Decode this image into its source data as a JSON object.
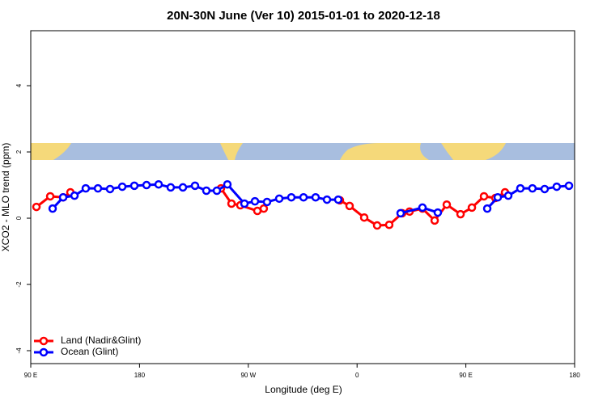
{
  "chart_data": {
    "type": "line",
    "title": "20N-30N June (Ver 10)   2015-01-01 to 2020-12-18",
    "x_label": "Longitude (deg E)",
    "y_label": "XCO2 - MLO trend (ppm)",
    "xlim": [
      90,
      540
    ],
    "xticks": [
      {
        "value": 90,
        "label": "90 E"
      },
      180,
      {
        "value": 270,
        "label": "90 W"
      },
      {
        "value": 360,
        "label": "0"
      },
      {
        "value": 450,
        "label": "90 E"
      },
      {
        "value": 540,
        "label": "180"
      }
    ],
    "ylim": [
      -4.39,
      5.66
    ],
    "yticks": [
      -4,
      -2,
      0,
      2,
      4
    ],
    "legend": "bottom-left",
    "series": [
      {
        "name": "Land (Nadir&Glint)",
        "color": "#ff0000",
        "x": [
          94.7,
          106.1,
          116.8,
          122.8,
          null,
          247.4,
          256.1,
          263.4,
          277.5,
          282.8,
          null,
          345.8,
          353.8,
          365.9,
          376.6,
          386.6,
          397.3,
          403.4,
          414.1,
          424.2,
          434.2,
          445.6,
          455.0,
          465.0,
          474.4,
          482.4
        ],
        "values": [
          0.34,
          0.66,
          0.63,
          0.78,
          null,
          0.9,
          0.44,
          0.39,
          0.22,
          0.29,
          null,
          0.54,
          0.37,
          0.02,
          -0.22,
          -0.2,
          0.15,
          0.2,
          0.29,
          -0.07,
          0.41,
          0.12,
          0.32,
          0.66,
          0.61,
          0.78
        ]
      },
      {
        "name": "Ocean (Glint)",
        "color": "#0000ff",
        "x": [
          108.1,
          116.8,
          126.2,
          135.5,
          145.6,
          155.6,
          165.7,
          175.7,
          185.8,
          195.8,
          205.8,
          215.9,
          225.9,
          235.3,
          244.0,
          252.7,
          266.8,
          275.5,
          285.5,
          295.6,
          305.6,
          315.7,
          325.7,
          335.1,
          344.4,
          null,
          396.0,
          414.1,
          426.8,
          null,
          467.7,
          476.4,
          485.1,
          495.1,
          505.1,
          515.2,
          525.2,
          535.3
        ],
        "values": [
          0.29,
          0.63,
          0.68,
          0.9,
          0.9,
          0.88,
          0.95,
          0.98,
          1.0,
          1.02,
          0.93,
          0.93,
          0.98,
          0.83,
          0.83,
          1.02,
          0.44,
          0.51,
          0.49,
          0.59,
          0.63,
          0.63,
          0.63,
          0.56,
          0.56,
          null,
          0.15,
          0.32,
          0.17,
          null,
          0.29,
          0.63,
          0.68,
          0.9,
          0.9,
          0.88,
          0.95,
          0.98
        ]
      }
    ]
  }
}
